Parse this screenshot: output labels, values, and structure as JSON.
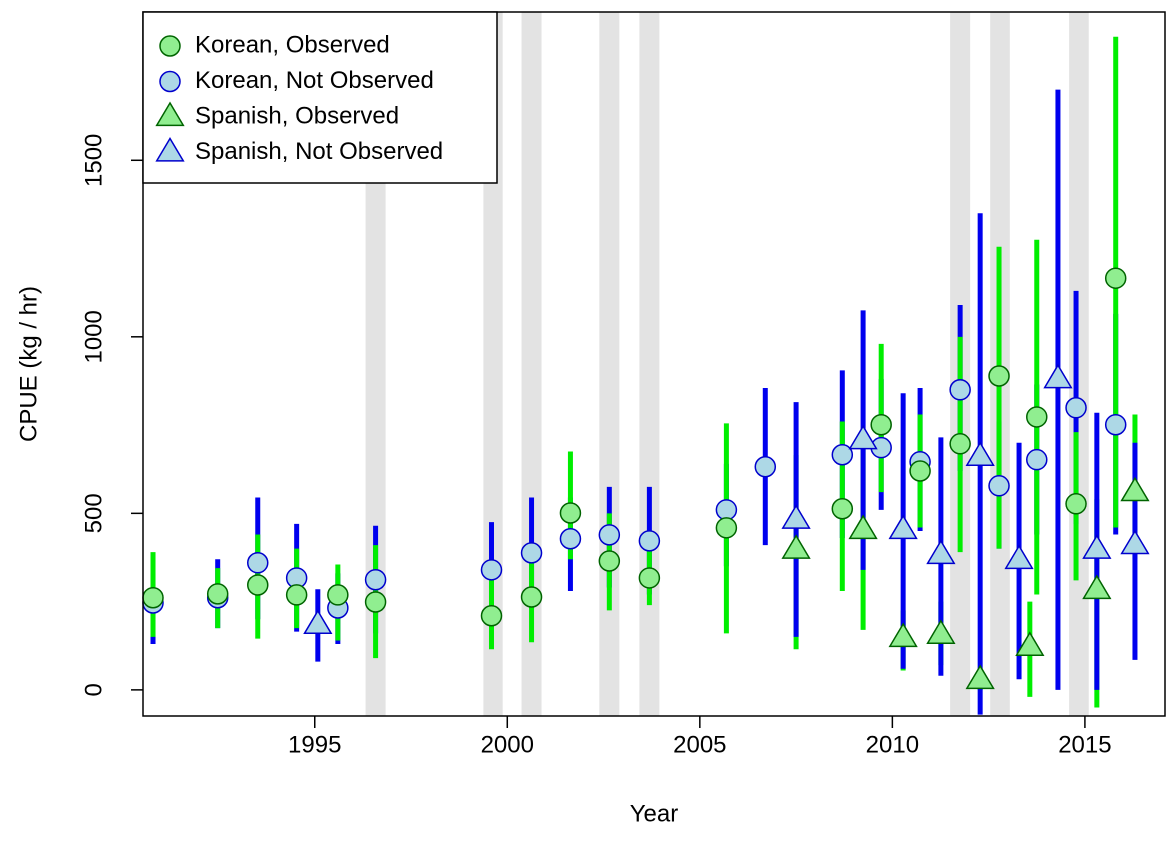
{
  "chart_data": {
    "type": "errorbar",
    "xlabel": "Year",
    "ylabel": "CPUE   (kg / hr)",
    "xlim": [
      1990.54,
      2017.08
    ],
    "ylim": [
      -74,
      1920
    ],
    "xticks": [
      1995,
      2000,
      2005,
      2010,
      2015
    ],
    "yticks": [
      0,
      500,
      1000,
      1500
    ],
    "shaded_years": [
      [
        1996.32,
        1996.84
      ],
      [
        1999.38,
        1999.88
      ],
      [
        2000.37,
        2000.89
      ],
      [
        2002.39,
        2002.91
      ],
      [
        2003.43,
        2003.95
      ],
      [
        2011.5,
        2012.02
      ],
      [
        2012.54,
        2013.05
      ],
      [
        2014.59,
        2015.1
      ]
    ],
    "legend": "upper left",
    "series": [
      {
        "name": "Korean, Not Observed",
        "marker": "circle",
        "color": "#add8e6",
        "edge_color": "#0000cd",
        "bar_color": "#0000ee",
        "x": [
          1990.8,
          1992.48,
          1993.52,
          1994.53,
          1995.6,
          1996.58,
          1999.59,
          2000.63,
          2001.64,
          2002.65,
          2003.69,
          2005.69,
          2006.7,
          2008.7,
          2009.71,
          2010.72,
          2011.76,
          2012.77,
          2013.75,
          2014.77,
          2015.8
        ],
        "values": [
          246,
          261,
          360,
          317,
          232,
          312,
          340,
          388,
          428,
          439,
          422,
          510,
          632,
          666,
          686,
          646,
          850,
          578,
          652,
          799,
          751
        ],
        "lower": [
          130,
          175,
          200,
          165,
          130,
          160,
          200,
          230,
          280,
          290,
          270,
          350,
          410,
          430,
          510,
          450,
          620,
          400,
          440,
          470,
          440
        ],
        "upper": [
          330,
          370,
          545,
          470,
          330,
          465,
          475,
          545,
          545,
          575,
          575,
          640,
          855,
          905,
          880,
          855,
          1090,
          760,
          865,
          1130,
          1065
        ]
      },
      {
        "name": "Korean, Observed",
        "marker": "circle",
        "color": "#90ee90",
        "edge_color": "#006400",
        "bar_color": "#00ee00",
        "x": [
          1990.8,
          1992.48,
          1993.52,
          1994.53,
          1995.6,
          1996.58,
          1999.59,
          2000.63,
          2001.64,
          2002.65,
          2003.69,
          2005.69,
          2008.7,
          2009.71,
          2010.72,
          2011.76,
          2012.77,
          2013.75,
          2014.77,
          2015.8
        ],
        "values": [
          261,
          272,
          297,
          269,
          269,
          249,
          210,
          263,
          501,
          365,
          317,
          459,
          513,
          751,
          620,
          697,
          889,
          773,
          527,
          1166
        ],
        "lower": [
          150,
          175,
          145,
          175,
          140,
          90,
          115,
          135,
          370,
          225,
          240,
          160,
          280,
          560,
          460,
          390,
          400,
          270,
          310,
          460
        ],
        "upper": [
          390,
          345,
          440,
          400,
          355,
          410,
          330,
          400,
          675,
          500,
          400,
          755,
          760,
          980,
          780,
          1000,
          1255,
          1275,
          730,
          1850
        ]
      },
      {
        "name": "Spanish, Observed",
        "marker": "triangle",
        "color": "#90ee90",
        "edge_color": "#006400",
        "bar_color": "#00ee00",
        "x": [
          2007.5,
          2009.24,
          2010.28,
          2011.26,
          2012.28,
          2013.57,
          2015.31,
          2016.3
        ],
        "values": [
          397,
          453,
          147,
          156,
          28,
          122,
          283,
          560
        ],
        "lower": [
          115,
          170,
          55,
          70,
          0,
          -20,
          -50,
          370
        ],
        "upper": [
          665,
          720,
          225,
          250,
          60,
          250,
          540,
          780
        ]
      },
      {
        "name": "Spanish, Not Observed",
        "marker": "triangle",
        "color": "#add8e6",
        "edge_color": "#0000cd",
        "bar_color": "#0000ee",
        "x": [
          1995.08,
          2007.5,
          2009.24,
          2010.28,
          2011.26,
          2012.28,
          2013.29,
          2014.3,
          2015.31,
          2016.3
        ],
        "values": [
          184,
          482,
          707,
          453,
          382,
          660,
          368,
          880,
          397,
          410
        ],
        "lower": [
          80,
          150,
          340,
          60,
          40,
          -70,
          30,
          0,
          0,
          85
        ],
        "upper": [
          285,
          815,
          1075,
          840,
          715,
          1350,
          700,
          1700,
          785,
          700
        ]
      }
    ]
  }
}
